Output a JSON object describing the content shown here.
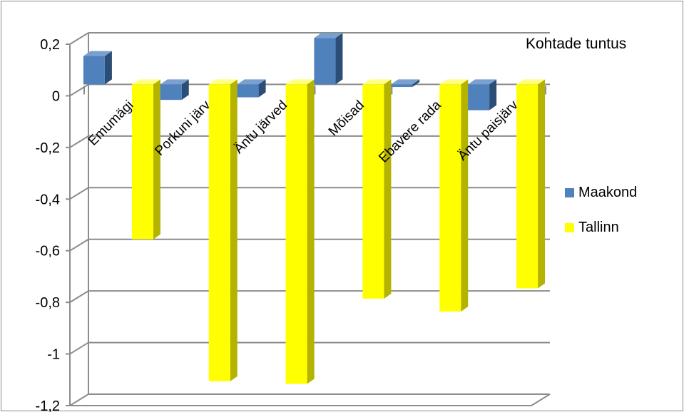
{
  "chart_data": {
    "type": "bar",
    "title": "Kohtade tuntus",
    "categories": [
      "Emumägi",
      "Porkuni järv",
      "Äntu järved",
      "Mõisad",
      "Ebavere rada",
      "Äntu paisjärv"
    ],
    "series": [
      {
        "name": "Maakond",
        "values": [
          0.11,
          -0.06,
          -0.05,
          0.18,
          -0.01,
          -0.1
        ]
      },
      {
        "name": "Tallinn",
        "values": [
          -0.6,
          -1.15,
          -1.16,
          -0.83,
          -0.88,
          -0.79
        ]
      }
    ],
    "ylim": [
      -1.2,
      0.2
    ],
    "yticks": [
      "0,2",
      "0",
      "-0,2",
      "-0,4",
      "-0,6",
      "-0,8",
      "-1",
      "-1,2"
    ],
    "grid": true,
    "legend_position": "right",
    "colors": {
      "Maakond": "#4f81bd",
      "Tallinn": "#ffff00"
    }
  }
}
